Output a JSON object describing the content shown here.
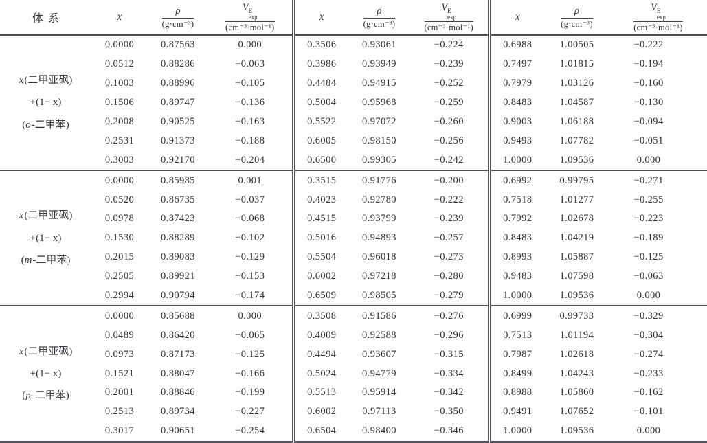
{
  "header": {
    "system": "体系",
    "x": "x",
    "rho_num": "ρ",
    "rho_den": "(g·cm⁻³)",
    "v_base": "V",
    "v_sup": "E",
    "v_sub": "exp",
    "v_den": "(cm⁻³·mol⁻¹)"
  },
  "groups": [
    {
      "label": {
        "l1_it": "x",
        "l1": "(二甲亚砜)",
        "l2": "+(1− x)",
        "l3_pre": "(",
        "l3_it": "o",
        "l3": "-二甲苯)"
      },
      "sections": [
        {
          "rows": [
            {
              "x": "0.0000",
              "rho": "0.87563",
              "v": "0.000"
            },
            {
              "x": "0.0512",
              "rho": "0.88286",
              "v": "−0.063"
            },
            {
              "x": "0.1003",
              "rho": "0.88996",
              "v": "−0.105"
            },
            {
              "x": "0.1506",
              "rho": "0.89747",
              "v": "−0.136"
            },
            {
              "x": "0.2008",
              "rho": "0.90525",
              "v": "−0.163"
            },
            {
              "x": "0.2531",
              "rho": "0.91373",
              "v": "−0.188"
            },
            {
              "x": "0.3003",
              "rho": "0.92170",
              "v": "−0.204"
            }
          ]
        },
        {
          "rows": [
            {
              "x": "0.3506",
              "rho": "0.93061",
              "v": "−0.224"
            },
            {
              "x": "0.3986",
              "rho": "0.93949",
              "v": "−0.239"
            },
            {
              "x": "0.4484",
              "rho": "0.94915",
              "v": "−0.252"
            },
            {
              "x": "0.5004",
              "rho": "0.95968",
              "v": "−0.259"
            },
            {
              "x": "0.5522",
              "rho": "0.97072",
              "v": "−0.260"
            },
            {
              "x": "0.6005",
              "rho": "0.98150",
              "v": "−0.256"
            },
            {
              "x": "0.6500",
              "rho": "0.99305",
              "v": "−0.242"
            }
          ]
        },
        {
          "rows": [
            {
              "x": "0.6988",
              "rho": "1.00505",
              "v": "−0.222"
            },
            {
              "x": "0.7497",
              "rho": "1.01815",
              "v": "−0.194"
            },
            {
              "x": "0.7979",
              "rho": "1.03126",
              "v": "−0.160"
            },
            {
              "x": "0.8483",
              "rho": "1.04587",
              "v": "−0.130"
            },
            {
              "x": "0.9003",
              "rho": "1.06188",
              "v": "−0.094"
            },
            {
              "x": "0.9493",
              "rho": "1.07782",
              "v": "−0.051"
            },
            {
              "x": "1.0000",
              "rho": "1.09536",
              "v": "0.000"
            }
          ]
        }
      ]
    },
    {
      "label": {
        "l1_it": "x",
        "l1": "(二甲亚砜)",
        "l2": "+(1− x)",
        "l3_pre": "(",
        "l3_it": "m",
        "l3": "-二甲苯)"
      },
      "sections": [
        {
          "rows": [
            {
              "x": "0.0000",
              "rho": "0.85985",
              "v": "0.001"
            },
            {
              "x": "0.0520",
              "rho": "0.86735",
              "v": "−0.037"
            },
            {
              "x": "0.0978",
              "rho": "0.87423",
              "v": "−0.068"
            },
            {
              "x": "0.1530",
              "rho": "0.88289",
              "v": "−0.102"
            },
            {
              "x": "0.2015",
              "rho": "0.89083",
              "v": "−0.129"
            },
            {
              "x": "0.2505",
              "rho": "0.89921",
              "v": "−0.153"
            },
            {
              "x": "0.2994",
              "rho": "0.90794",
              "v": "−0.174"
            }
          ]
        },
        {
          "rows": [
            {
              "x": "0.3515",
              "rho": "0.91776",
              "v": "−0.200"
            },
            {
              "x": "0.4023",
              "rho": "0.92780",
              "v": "−0.222"
            },
            {
              "x": "0.4515",
              "rho": "0.93799",
              "v": "−0.239"
            },
            {
              "x": "0.5016",
              "rho": "0.94893",
              "v": "−0.257"
            },
            {
              "x": "0.5504",
              "rho": "0.96018",
              "v": "−0.273"
            },
            {
              "x": "0.6002",
              "rho": "0.97218",
              "v": "−0.280"
            },
            {
              "x": "0.6509",
              "rho": "0.98505",
              "v": "−0.279"
            }
          ]
        },
        {
          "rows": [
            {
              "x": "0.6992",
              "rho": "0.99795",
              "v": "−0.271"
            },
            {
              "x": "0.7518",
              "rho": "1.01277",
              "v": "−0.255"
            },
            {
              "x": "0.7992",
              "rho": "1.02678",
              "v": "−0.223"
            },
            {
              "x": "0.8483",
              "rho": "1.04219",
              "v": "−0.189"
            },
            {
              "x": "0.8993",
              "rho": "1.05887",
              "v": "−0.125"
            },
            {
              "x": "0.9483",
              "rho": "1.07598",
              "v": "−0.063"
            },
            {
              "x": "1.0000",
              "rho": "1.09536",
              "v": "0.000"
            }
          ]
        }
      ]
    },
    {
      "label": {
        "l1_it": "x",
        "l1": "(二甲亚砜)",
        "l2": "+(1− x)",
        "l3_pre": "(",
        "l3_it": "p",
        "l3": "-二甲苯)"
      },
      "sections": [
        {
          "rows": [
            {
              "x": "0.0000",
              "rho": "0.85688",
              "v": "0.000"
            },
            {
              "x": "0.0489",
              "rho": "0.86420",
              "v": "−0.065"
            },
            {
              "x": "0.0973",
              "rho": "0.87173",
              "v": "−0.125"
            },
            {
              "x": "0.1521",
              "rho": "0.88047",
              "v": "−0.166"
            },
            {
              "x": "0.2001",
              "rho": "0.88846",
              "v": "−0.199"
            },
            {
              "x": "0.2513",
              "rho": "0.89734",
              "v": "−0.227"
            },
            {
              "x": "0.3017",
              "rho": "0.90651",
              "v": "−0.254"
            }
          ]
        },
        {
          "rows": [
            {
              "x": "0.3508",
              "rho": "0.91586",
              "v": "−0.276"
            },
            {
              "x": "0.4009",
              "rho": "0.92588",
              "v": "−0.296"
            },
            {
              "x": "0.4494",
              "rho": "0.93607",
              "v": "−0.315"
            },
            {
              "x": "0.5024",
              "rho": "0.94779",
              "v": "−0.334"
            },
            {
              "x": "0.5513",
              "rho": "0.95914",
              "v": "−0.342"
            },
            {
              "x": "0.6002",
              "rho": "0.97113",
              "v": "−0.350"
            },
            {
              "x": "0.6504",
              "rho": "0.98400",
              "v": "−0.346"
            }
          ]
        },
        {
          "rows": [
            {
              "x": "0.6999",
              "rho": "0.99733",
              "v": "−0.329"
            },
            {
              "x": "0.7513",
              "rho": "1.01194",
              "v": "−0.304"
            },
            {
              "x": "0.7987",
              "rho": "1.02618",
              "v": "−0.274"
            },
            {
              "x": "0.8499",
              "rho": "1.04243",
              "v": "−0.233"
            },
            {
              "x": "0.8988",
              "rho": "1.05860",
              "v": "−0.162"
            },
            {
              "x": "0.9491",
              "rho": "1.07652",
              "v": "−0.101"
            },
            {
              "x": "1.0000",
              "rho": "1.09536",
              "v": "0.000"
            }
          ]
        }
      ]
    }
  ]
}
